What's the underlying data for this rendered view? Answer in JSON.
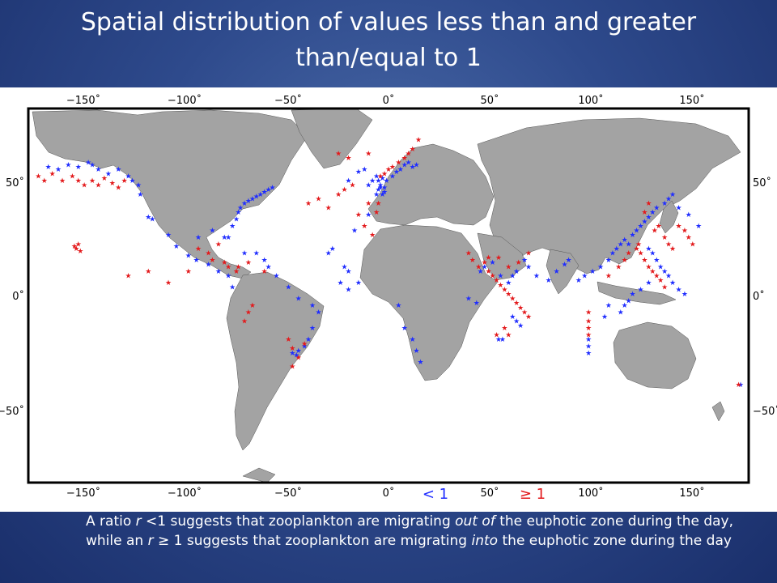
{
  "slide": {
    "title_line1": "Spatial distribution of values less than and greater",
    "title_line2": "than/equal to 1"
  },
  "map": {
    "projection": "Mercator",
    "lon_ticks_top": [
      "−150˚",
      "−100˚",
      "−50˚",
      "0˚",
      "50˚",
      "100˚",
      "150˚"
    ],
    "lon_ticks_bottom": [
      "−150˚",
      "−100˚",
      "−50˚",
      "0˚",
      "50˚",
      "100˚",
      "150˚"
    ],
    "lat_ticks_left": [
      "50˚",
      "0˚",
      "−50˚"
    ],
    "lat_ticks_right": [
      "50˚",
      "0˚",
      "−50˚"
    ],
    "land_color": "#a3a3a3",
    "ocean_color": "#ffffff",
    "marker_symbol": "★",
    "legend": [
      {
        "label": "< 1",
        "color": "#1f2dff"
      },
      {
        "label": "≥ 1",
        "color": "#e31a1c"
      }
    ]
  },
  "caption": {
    "part1": "A ratio ",
    "r1": "r",
    "part2": " <1 suggests that zooplankton are migrating ",
    "em1": "out of",
    "part3": " the euphotic zone during the day, while an ",
    "r2": "r",
    "part4": " ≥ 1 suggests that zooplankton are migrating ",
    "em2": "into",
    "part5": " the euphotic zone during the day"
  },
  "chart_data": {
    "type": "scatter",
    "xlabel": "",
    "ylabel": "",
    "xlim": [
      -180,
      180
    ],
    "ylim": [
      -80,
      80
    ],
    "series": [
      {
        "name": "< 1",
        "color": "#1f2dff",
        "points": [
          [
            -170,
            56
          ],
          [
            -165,
            55
          ],
          [
            -160,
            57
          ],
          [
            -155,
            56
          ],
          [
            -150,
            58
          ],
          [
            -148,
            57
          ],
          [
            -145,
            55
          ],
          [
            -140,
            53
          ],
          [
            -135,
            55
          ],
          [
            -130,
            52
          ],
          [
            -128,
            50
          ],
          [
            -125,
            48
          ],
          [
            -124,
            44
          ],
          [
            -120,
            34
          ],
          [
            -118,
            33
          ],
          [
            -110,
            26
          ],
          [
            -106,
            21
          ],
          [
            -100,
            17
          ],
          [
            -96,
            15
          ],
          [
            -90,
            13
          ],
          [
            -85,
            10
          ],
          [
            -80,
            8
          ],
          [
            -78,
            3
          ],
          [
            -80,
            25
          ],
          [
            -78,
            30
          ],
          [
            -76,
            33
          ],
          [
            -75,
            36
          ],
          [
            -74,
            38
          ],
          [
            -72,
            40
          ],
          [
            -70,
            41
          ],
          [
            -68,
            42
          ],
          [
            -66,
            43
          ],
          [
            -64,
            44
          ],
          [
            -62,
            45
          ],
          [
            -60,
            46
          ],
          [
            -58,
            47
          ],
          [
            -95,
            25
          ],
          [
            -88,
            28
          ],
          [
            -82,
            25
          ],
          [
            -72,
            18
          ],
          [
            -66,
            18
          ],
          [
            -62,
            15
          ],
          [
            -60,
            12
          ],
          [
            -56,
            8
          ],
          [
            -50,
            3
          ],
          [
            -45,
            -2
          ],
          [
            -38,
            -5
          ],
          [
            -35,
            -8
          ],
          [
            -38,
            -15
          ],
          [
            -40,
            -20
          ],
          [
            -42,
            -23
          ],
          [
            -45,
            -25
          ],
          [
            -46,
            -27
          ],
          [
            -48,
            -26
          ],
          [
            -30,
            18
          ],
          [
            -28,
            20
          ],
          [
            -20,
            50
          ],
          [
            -15,
            54
          ],
          [
            -12,
            55
          ],
          [
            -10,
            48
          ],
          [
            -8,
            50
          ],
          [
            -6,
            52
          ],
          [
            -4,
            48
          ],
          [
            -5,
            46
          ],
          [
            -3,
            44
          ],
          [
            -2,
            45
          ],
          [
            -2,
            47
          ],
          [
            -4,
            47
          ],
          [
            -6,
            44
          ],
          [
            -5,
            50
          ],
          [
            -3,
            51
          ],
          [
            -1,
            50
          ],
          [
            2,
            52
          ],
          [
            4,
            54
          ],
          [
            6,
            55
          ],
          [
            8,
            57
          ],
          [
            10,
            58
          ],
          [
            12,
            56
          ],
          [
            14,
            57
          ],
          [
            -10,
            35
          ],
          [
            -17,
            28
          ],
          [
            -20,
            10
          ],
          [
            -22,
            12
          ],
          [
            -24,
            5
          ],
          [
            -20,
            2
          ],
          [
            -15,
            5
          ],
          [
            5,
            -5
          ],
          [
            8,
            -15
          ],
          [
            12,
            -20
          ],
          [
            14,
            -25
          ],
          [
            16,
            -30
          ],
          [
            40,
            -2
          ],
          [
            44,
            -4
          ],
          [
            46,
            10
          ],
          [
            48,
            12
          ],
          [
            52,
            14
          ],
          [
            56,
            8
          ],
          [
            60,
            5
          ],
          [
            62,
            8
          ],
          [
            64,
            10
          ],
          [
            68,
            15
          ],
          [
            70,
            12
          ],
          [
            74,
            8
          ],
          [
            80,
            6
          ],
          [
            84,
            10
          ],
          [
            88,
            13
          ],
          [
            90,
            15
          ],
          [
            95,
            6
          ],
          [
            98,
            8
          ],
          [
            102,
            10
          ],
          [
            106,
            12
          ],
          [
            110,
            15
          ],
          [
            112,
            18
          ],
          [
            114,
            20
          ],
          [
            116,
            22
          ],
          [
            118,
            24
          ],
          [
            120,
            22
          ],
          [
            122,
            26
          ],
          [
            124,
            28
          ],
          [
            126,
            30
          ],
          [
            128,
            32
          ],
          [
            130,
            34
          ],
          [
            132,
            36
          ],
          [
            134,
            38
          ],
          [
            138,
            40
          ],
          [
            140,
            42
          ],
          [
            142,
            44
          ],
          [
            145,
            38
          ],
          [
            150,
            35
          ],
          [
            155,
            30
          ],
          [
            130,
            20
          ],
          [
            132,
            18
          ],
          [
            134,
            15
          ],
          [
            136,
            12
          ],
          [
            138,
            10
          ],
          [
            140,
            8
          ],
          [
            142,
            5
          ],
          [
            145,
            2
          ],
          [
            148,
            0
          ],
          [
            130,
            5
          ],
          [
            126,
            2
          ],
          [
            122,
            0
          ],
          [
            120,
            -3
          ],
          [
            118,
            -5
          ],
          [
            116,
            -8
          ],
          [
            110,
            -5
          ],
          [
            108,
            -10
          ],
          [
            100,
            -20
          ],
          [
            100,
            -23
          ],
          [
            100,
            -26
          ],
          [
            62,
            -10
          ],
          [
            64,
            -12
          ],
          [
            66,
            -14
          ],
          [
            55,
            -20
          ],
          [
            57,
            -20
          ],
          [
            176,
            -40
          ]
        ]
      },
      {
        "name": "≥ 1",
        "color": "#e31a1c",
        "points": [
          [
            -175,
            52
          ],
          [
            -172,
            50
          ],
          [
            -168,
            53
          ],
          [
            -163,
            50
          ],
          [
            -158,
            52
          ],
          [
            -155,
            50
          ],
          [
            -152,
            48
          ],
          [
            -148,
            50
          ],
          [
            -145,
            48
          ],
          [
            -142,
            51
          ],
          [
            -138,
            49
          ],
          [
            -135,
            47
          ],
          [
            -132,
            50
          ],
          [
            -155,
            22
          ],
          [
            -156,
            20
          ],
          [
            -157,
            21
          ],
          [
            -154,
            19
          ],
          [
            -130,
            8
          ],
          [
            -120,
            10
          ],
          [
            -110,
            5
          ],
          [
            -100,
            10
          ],
          [
            -95,
            20
          ],
          [
            -90,
            18
          ],
          [
            -85,
            22
          ],
          [
            -88,
            15
          ],
          [
            -82,
            14
          ],
          [
            -80,
            12
          ],
          [
            -76,
            10
          ],
          [
            -75,
            12
          ],
          [
            -70,
            14
          ],
          [
            -62,
            10
          ],
          [
            -68,
            -5
          ],
          [
            -70,
            -8
          ],
          [
            -72,
            -12
          ],
          [
            -50,
            -20
          ],
          [
            -45,
            -28
          ],
          [
            -48,
            -32
          ],
          [
            -48,
            -24
          ],
          [
            -42,
            -22
          ],
          [
            -40,
            40
          ],
          [
            -35,
            42
          ],
          [
            -30,
            38
          ],
          [
            -25,
            44
          ],
          [
            -22,
            46
          ],
          [
            -18,
            48
          ],
          [
            -10,
            40
          ],
          [
            -5,
            40
          ],
          [
            -6,
            36
          ],
          [
            -4,
            52
          ],
          [
            -2,
            53
          ],
          [
            0,
            55
          ],
          [
            2,
            56
          ],
          [
            5,
            58
          ],
          [
            8,
            60
          ],
          [
            10,
            62
          ],
          [
            12,
            64
          ],
          [
            15,
            68
          ],
          [
            -15,
            35
          ],
          [
            -12,
            30
          ],
          [
            -8,
            26
          ],
          [
            -20,
            60
          ],
          [
            -25,
            62
          ],
          [
            -10,
            62
          ],
          [
            40,
            18
          ],
          [
            42,
            15
          ],
          [
            45,
            12
          ],
          [
            50,
            10
          ],
          [
            52,
            8
          ],
          [
            54,
            6
          ],
          [
            56,
            4
          ],
          [
            58,
            2
          ],
          [
            60,
            0
          ],
          [
            62,
            -2
          ],
          [
            64,
            -4
          ],
          [
            66,
            -6
          ],
          [
            68,
            -8
          ],
          [
            70,
            -10
          ],
          [
            60,
            12
          ],
          [
            65,
            14
          ],
          [
            70,
            18
          ],
          [
            50,
            16
          ],
          [
            48,
            14
          ],
          [
            55,
            16
          ],
          [
            54,
            -18
          ],
          [
            58,
            -15
          ],
          [
            60,
            -18
          ],
          [
            100,
            -12
          ],
          [
            100,
            -15
          ],
          [
            100,
            -18
          ],
          [
            100,
            -8
          ],
          [
            110,
            8
          ],
          [
            115,
            12
          ],
          [
            118,
            15
          ],
          [
            120,
            18
          ],
          [
            124,
            20
          ],
          [
            125,
            22
          ],
          [
            126,
            18
          ],
          [
            128,
            15
          ],
          [
            130,
            12
          ],
          [
            132,
            10
          ],
          [
            134,
            8
          ],
          [
            136,
            6
          ],
          [
            138,
            3
          ],
          [
            135,
            30
          ],
          [
            133,
            28
          ],
          [
            138,
            25
          ],
          [
            140,
            22
          ],
          [
            142,
            20
          ],
          [
            145,
            30
          ],
          [
            148,
            28
          ],
          [
            150,
            25
          ],
          [
            152,
            22
          ],
          [
            128,
            36
          ],
          [
            130,
            40
          ],
          [
            175,
            -40
          ]
        ]
      }
    ]
  }
}
